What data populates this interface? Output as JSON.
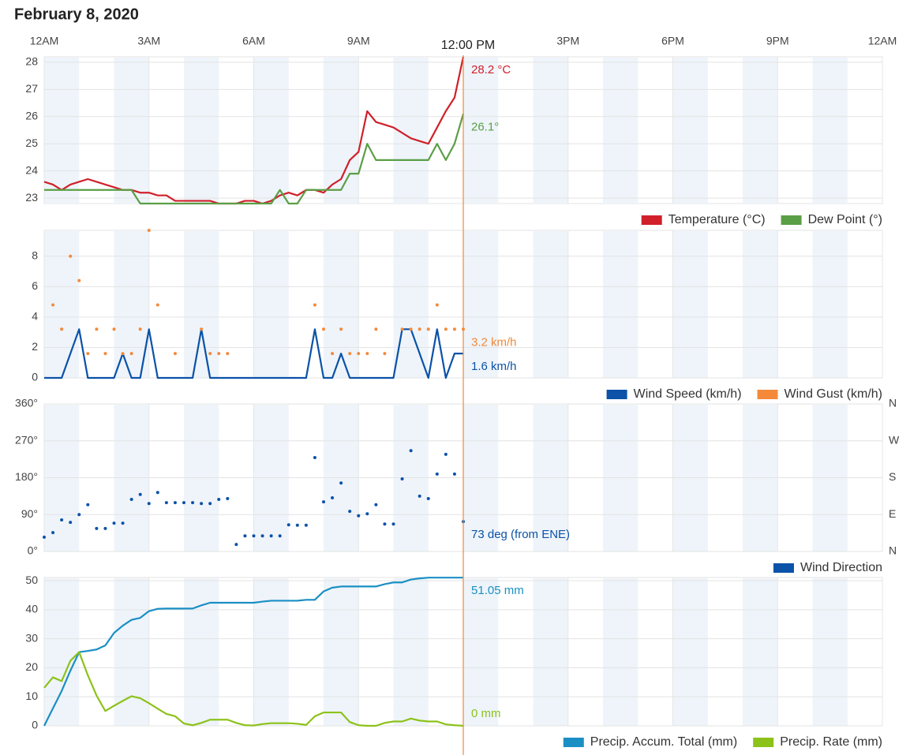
{
  "title": "February 8, 2020",
  "time": {
    "xlim": [
      0,
      24
    ],
    "xticks": [
      {
        "value": 0,
        "label": "12AM"
      },
      {
        "value": 3,
        "label": "3AM"
      },
      {
        "value": 6,
        "label": "6AM"
      },
      {
        "value": 9,
        "label": "9AM"
      },
      {
        "value": 12,
        "label": "12PM"
      },
      {
        "value": 15,
        "label": "3PM"
      },
      {
        "value": 18,
        "label": "6PM"
      },
      {
        "value": 21,
        "label": "9PM"
      },
      {
        "value": 24,
        "label": "12AM"
      }
    ],
    "crosshair": {
      "value": 12,
      "label": "12:00 PM"
    },
    "x": [
      0,
      0.25,
      0.5,
      0.75,
      1,
      1.25,
      1.5,
      1.75,
      2,
      2.25,
      2.5,
      2.75,
      3,
      3.25,
      3.5,
      3.75,
      4,
      4.25,
      4.5,
      4.75,
      5,
      5.25,
      5.5,
      5.75,
      6,
      6.25,
      6.5,
      6.75,
      7,
      7.25,
      7.5,
      7.75,
      8,
      8.25,
      8.5,
      8.75,
      9,
      9.25,
      9.5,
      9.75,
      10,
      10.25,
      10.5,
      10.75,
      11,
      11.25,
      11.5,
      11.75,
      12
    ]
  },
  "chart_data": [
    {
      "type": "line",
      "ylim": [
        22.8,
        28.2
      ],
      "yticks": [
        23,
        24,
        25,
        26,
        27,
        28
      ],
      "grid": true,
      "series": [
        {
          "name": "Temperature (°C)",
          "color": "#d0202a",
          "type": "line",
          "current_label": "28.2 °C",
          "values": [
            23.6,
            23.5,
            23.3,
            23.5,
            23.6,
            23.7,
            23.6,
            23.5,
            23.4,
            23.3,
            23.3,
            23.2,
            23.2,
            23.1,
            23.1,
            22.9,
            22.9,
            22.9,
            22.9,
            22.9,
            22.8,
            22.8,
            22.8,
            22.9,
            22.9,
            22.8,
            22.9,
            23.1,
            23.2,
            23.1,
            23.3,
            23.3,
            23.2,
            23.5,
            23.7,
            24.4,
            24.7,
            26.2,
            25.8,
            25.7,
            25.6,
            25.4,
            25.2,
            25.1,
            25.0,
            25.6,
            26.2,
            26.7,
            28.2
          ]
        },
        {
          "name": "Dew Point (°)",
          "color": "#5a9e46",
          "type": "line",
          "current_label": "26.1°",
          "values": [
            23.3,
            23.3,
            23.3,
            23.3,
            23.3,
            23.3,
            23.3,
            23.3,
            23.3,
            23.3,
            23.3,
            22.8,
            22.8,
            22.8,
            22.8,
            22.8,
            22.8,
            22.8,
            22.8,
            22.8,
            22.8,
            22.8,
            22.8,
            22.8,
            22.8,
            22.8,
            22.8,
            23.3,
            22.8,
            22.8,
            23.3,
            23.3,
            23.3,
            23.3,
            23.3,
            23.9,
            23.9,
            25.0,
            24.4,
            24.4,
            24.4,
            24.4,
            24.4,
            24.4,
            24.4,
            25.0,
            24.4,
            25.0,
            26.1
          ]
        }
      ]
    },
    {
      "type": "line",
      "ylim": [
        0,
        9.7
      ],
      "yticks": [
        0,
        2,
        4,
        6,
        8
      ],
      "grid": true,
      "series": [
        {
          "name": "Wind Speed (km/h)",
          "color": "#0b52a8",
          "type": "line",
          "current_label": "1.6 km/h",
          "values": [
            0,
            0,
            0,
            1.6,
            3.2,
            0,
            0,
            0,
            0,
            1.6,
            0,
            0,
            3.2,
            0,
            0,
            0,
            0,
            0,
            3.2,
            0,
            0,
            0,
            0,
            0,
            0,
            0,
            0,
            0,
            0,
            0,
            0,
            3.2,
            0,
            0,
            1.6,
            0,
            0,
            0,
            0,
            0,
            0,
            3.2,
            3.2,
            1.6,
            0,
            3.2,
            0,
            1.6,
            1.6
          ]
        },
        {
          "name": "Wind Gust (km/h)",
          "color": "#f4893a",
          "type": "scatter",
          "current_label": "3.2 km/h",
          "values": [
            null,
            4.8,
            3.2,
            8.0,
            6.4,
            1.6,
            3.2,
            1.6,
            3.2,
            1.6,
            1.6,
            3.2,
            9.7,
            4.8,
            null,
            1.6,
            null,
            null,
            3.2,
            1.6,
            1.6,
            1.6,
            null,
            null,
            null,
            null,
            null,
            null,
            null,
            null,
            null,
            4.8,
            3.2,
            1.6,
            3.2,
            1.6,
            1.6,
            1.6,
            3.2,
            1.6,
            null,
            3.2,
            3.2,
            3.2,
            3.2,
            4.8,
            3.2,
            3.2,
            3.2
          ]
        }
      ]
    },
    {
      "type": "scatter",
      "ylim": [
        0,
        360
      ],
      "grid": true,
      "yticks": [
        {
          "value": 0,
          "label": "0°"
        },
        {
          "value": 90,
          "label": "90°"
        },
        {
          "value": 180,
          "label": "180°"
        },
        {
          "value": 270,
          "label": "270°"
        },
        {
          "value": 360,
          "label": "360°"
        }
      ],
      "y2lim": [
        0,
        360
      ],
      "y2ticks": [
        {
          "value": 0,
          "label": "N"
        },
        {
          "value": 90,
          "label": "E"
        },
        {
          "value": 180,
          "label": "S"
        },
        {
          "value": 270,
          "label": "W"
        },
        {
          "value": 360,
          "label": "N"
        }
      ],
      "series": [
        {
          "name": "Wind Direction",
          "color": "#0b52a8",
          "type": "scatter",
          "current_label": "73 deg (from ENE)",
          "values": [
            35,
            46,
            77,
            71,
            90,
            114,
            56,
            56,
            69,
            69,
            127,
            139,
            117,
            144,
            119,
            119,
            119,
            119,
            117,
            117,
            127,
            129,
            17,
            38,
            38,
            38,
            38,
            38,
            65,
            64,
            64,
            229,
            121,
            131,
            167,
            98,
            87,
            92,
            114,
            67,
            67,
            177,
            246,
            135,
            129,
            189,
            237,
            189,
            73
          ]
        }
      ]
    },
    {
      "type": "line",
      "ylim": [
        0,
        51.1
      ],
      "yticks": [
        0,
        10,
        20,
        30,
        40,
        50
      ],
      "grid": true,
      "series": [
        {
          "name": "Precip. Accum. Total (mm)",
          "color": "#1a8fc4",
          "type": "line",
          "current_label": "51.05 mm",
          "values": [
            0,
            6,
            12,
            19,
            25.4,
            25.8,
            26.3,
            27.7,
            32,
            34.5,
            36.5,
            37.2,
            39.5,
            40.3,
            40.4,
            40.4,
            40.4,
            40.4,
            41.5,
            42.4,
            42.4,
            42.4,
            42.4,
            42.4,
            42.4,
            42.8,
            43.1,
            43.1,
            43.1,
            43.1,
            43.4,
            43.4,
            46.3,
            47.6,
            48.0,
            48.0,
            48.0,
            48.0,
            48.0,
            48.8,
            49.4,
            49.4,
            50.4,
            50.8,
            51.05,
            51.05,
            51.05,
            51.05,
            51.05
          ]
        },
        {
          "name": "Precip. Rate (mm)",
          "color": "#8cc21a",
          "type": "line",
          "current_label": "0 mm",
          "values": [
            13.1,
            16.7,
            15.4,
            22.4,
            25.4,
            17.4,
            10.4,
            5.1,
            6.9,
            8.6,
            10.2,
            9.5,
            7.8,
            5.9,
            4.1,
            3.3,
            0.8,
            0.2,
            1.0,
            2.1,
            2.1,
            2.1,
            1.0,
            0.2,
            0.1,
            0.6,
            0.9,
            0.9,
            0.9,
            0.7,
            0.3,
            3.3,
            4.6,
            4.6,
            4.6,
            1.3,
            0.2,
            0,
            0,
            1.0,
            1.5,
            1.5,
            2.5,
            1.8,
            1.5,
            1.5,
            0.5,
            0.2,
            0
          ]
        }
      ]
    }
  ]
}
